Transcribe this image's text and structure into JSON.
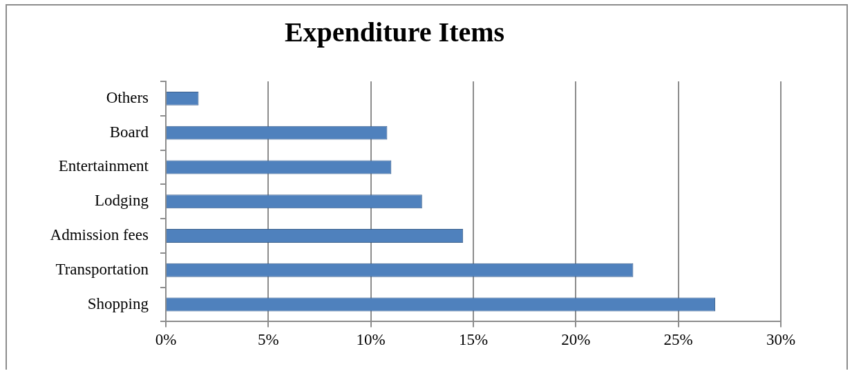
{
  "chart_data": {
    "type": "bar",
    "orientation": "horizontal",
    "title": "Expenditure Items",
    "categories": [
      "Others",
      "Board",
      "Entertainment",
      "Lodging",
      "Admission fees",
      "Transportation",
      "Shopping"
    ],
    "values": [
      1.6,
      10.8,
      11.0,
      12.5,
      14.5,
      22.8,
      26.8
    ],
    "color": "#4f81bd",
    "xlim": [
      0,
      30
    ],
    "xticks": [
      {
        "value": 0,
        "label": "0%"
      },
      {
        "value": 5,
        "label": "5%"
      },
      {
        "value": 10,
        "label": "10%"
      },
      {
        "value": 15,
        "label": "15%"
      },
      {
        "value": 20,
        "label": "20%"
      },
      {
        "value": 25,
        "label": "25%"
      },
      {
        "value": 30,
        "label": "30%"
      }
    ],
    "grid": "x"
  }
}
